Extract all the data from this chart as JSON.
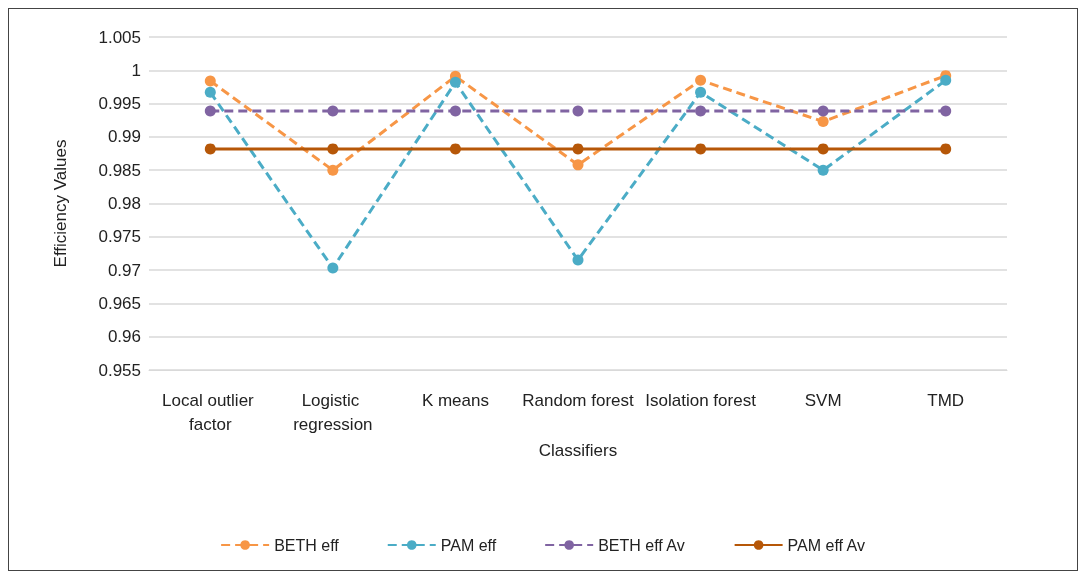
{
  "chart_data": {
    "type": "line",
    "xlabel": "Classifiers",
    "ylabel": "Efficiency Values",
    "categories": [
      "Local outlier factor",
      "Logistic regression",
      "K means",
      "Random forest",
      "Isolation forest",
      "SVM",
      "TMD"
    ],
    "series": [
      {
        "name": "BETH eff",
        "color": "#f79646",
        "line_style": "dashed",
        "values": [
          0.9984,
          0.985,
          0.9991,
          0.9858,
          0.9985,
          0.9923,
          0.9992
        ]
      },
      {
        "name": "PAM eff",
        "color": "#4bacc6",
        "line_style": "dashed",
        "values": [
          0.9967,
          0.9703,
          0.9982,
          0.9715,
          0.9967,
          0.985,
          0.9985
        ]
      },
      {
        "name": "BETH eff Av",
        "color": "#8064a2",
        "line_style": "dashed",
        "values": [
          0.9939,
          0.9939,
          0.9939,
          0.9939,
          0.9939,
          0.9939,
          0.9939
        ]
      },
      {
        "name": "PAM eff Av",
        "color": "#b65708",
        "line_style": "solid",
        "values": [
          0.9882,
          0.9882,
          0.9882,
          0.9882,
          0.9882,
          0.9882,
          0.9882
        ]
      }
    ],
    "ylim": [
      0.955,
      1.005
    ],
    "yticks": [
      0.955,
      0.96,
      0.965,
      0.97,
      0.975,
      0.98,
      0.985,
      0.99,
      0.995,
      1,
      1.005
    ],
    "grid": "y",
    "legend": "bottom",
    "marker": "circle"
  }
}
